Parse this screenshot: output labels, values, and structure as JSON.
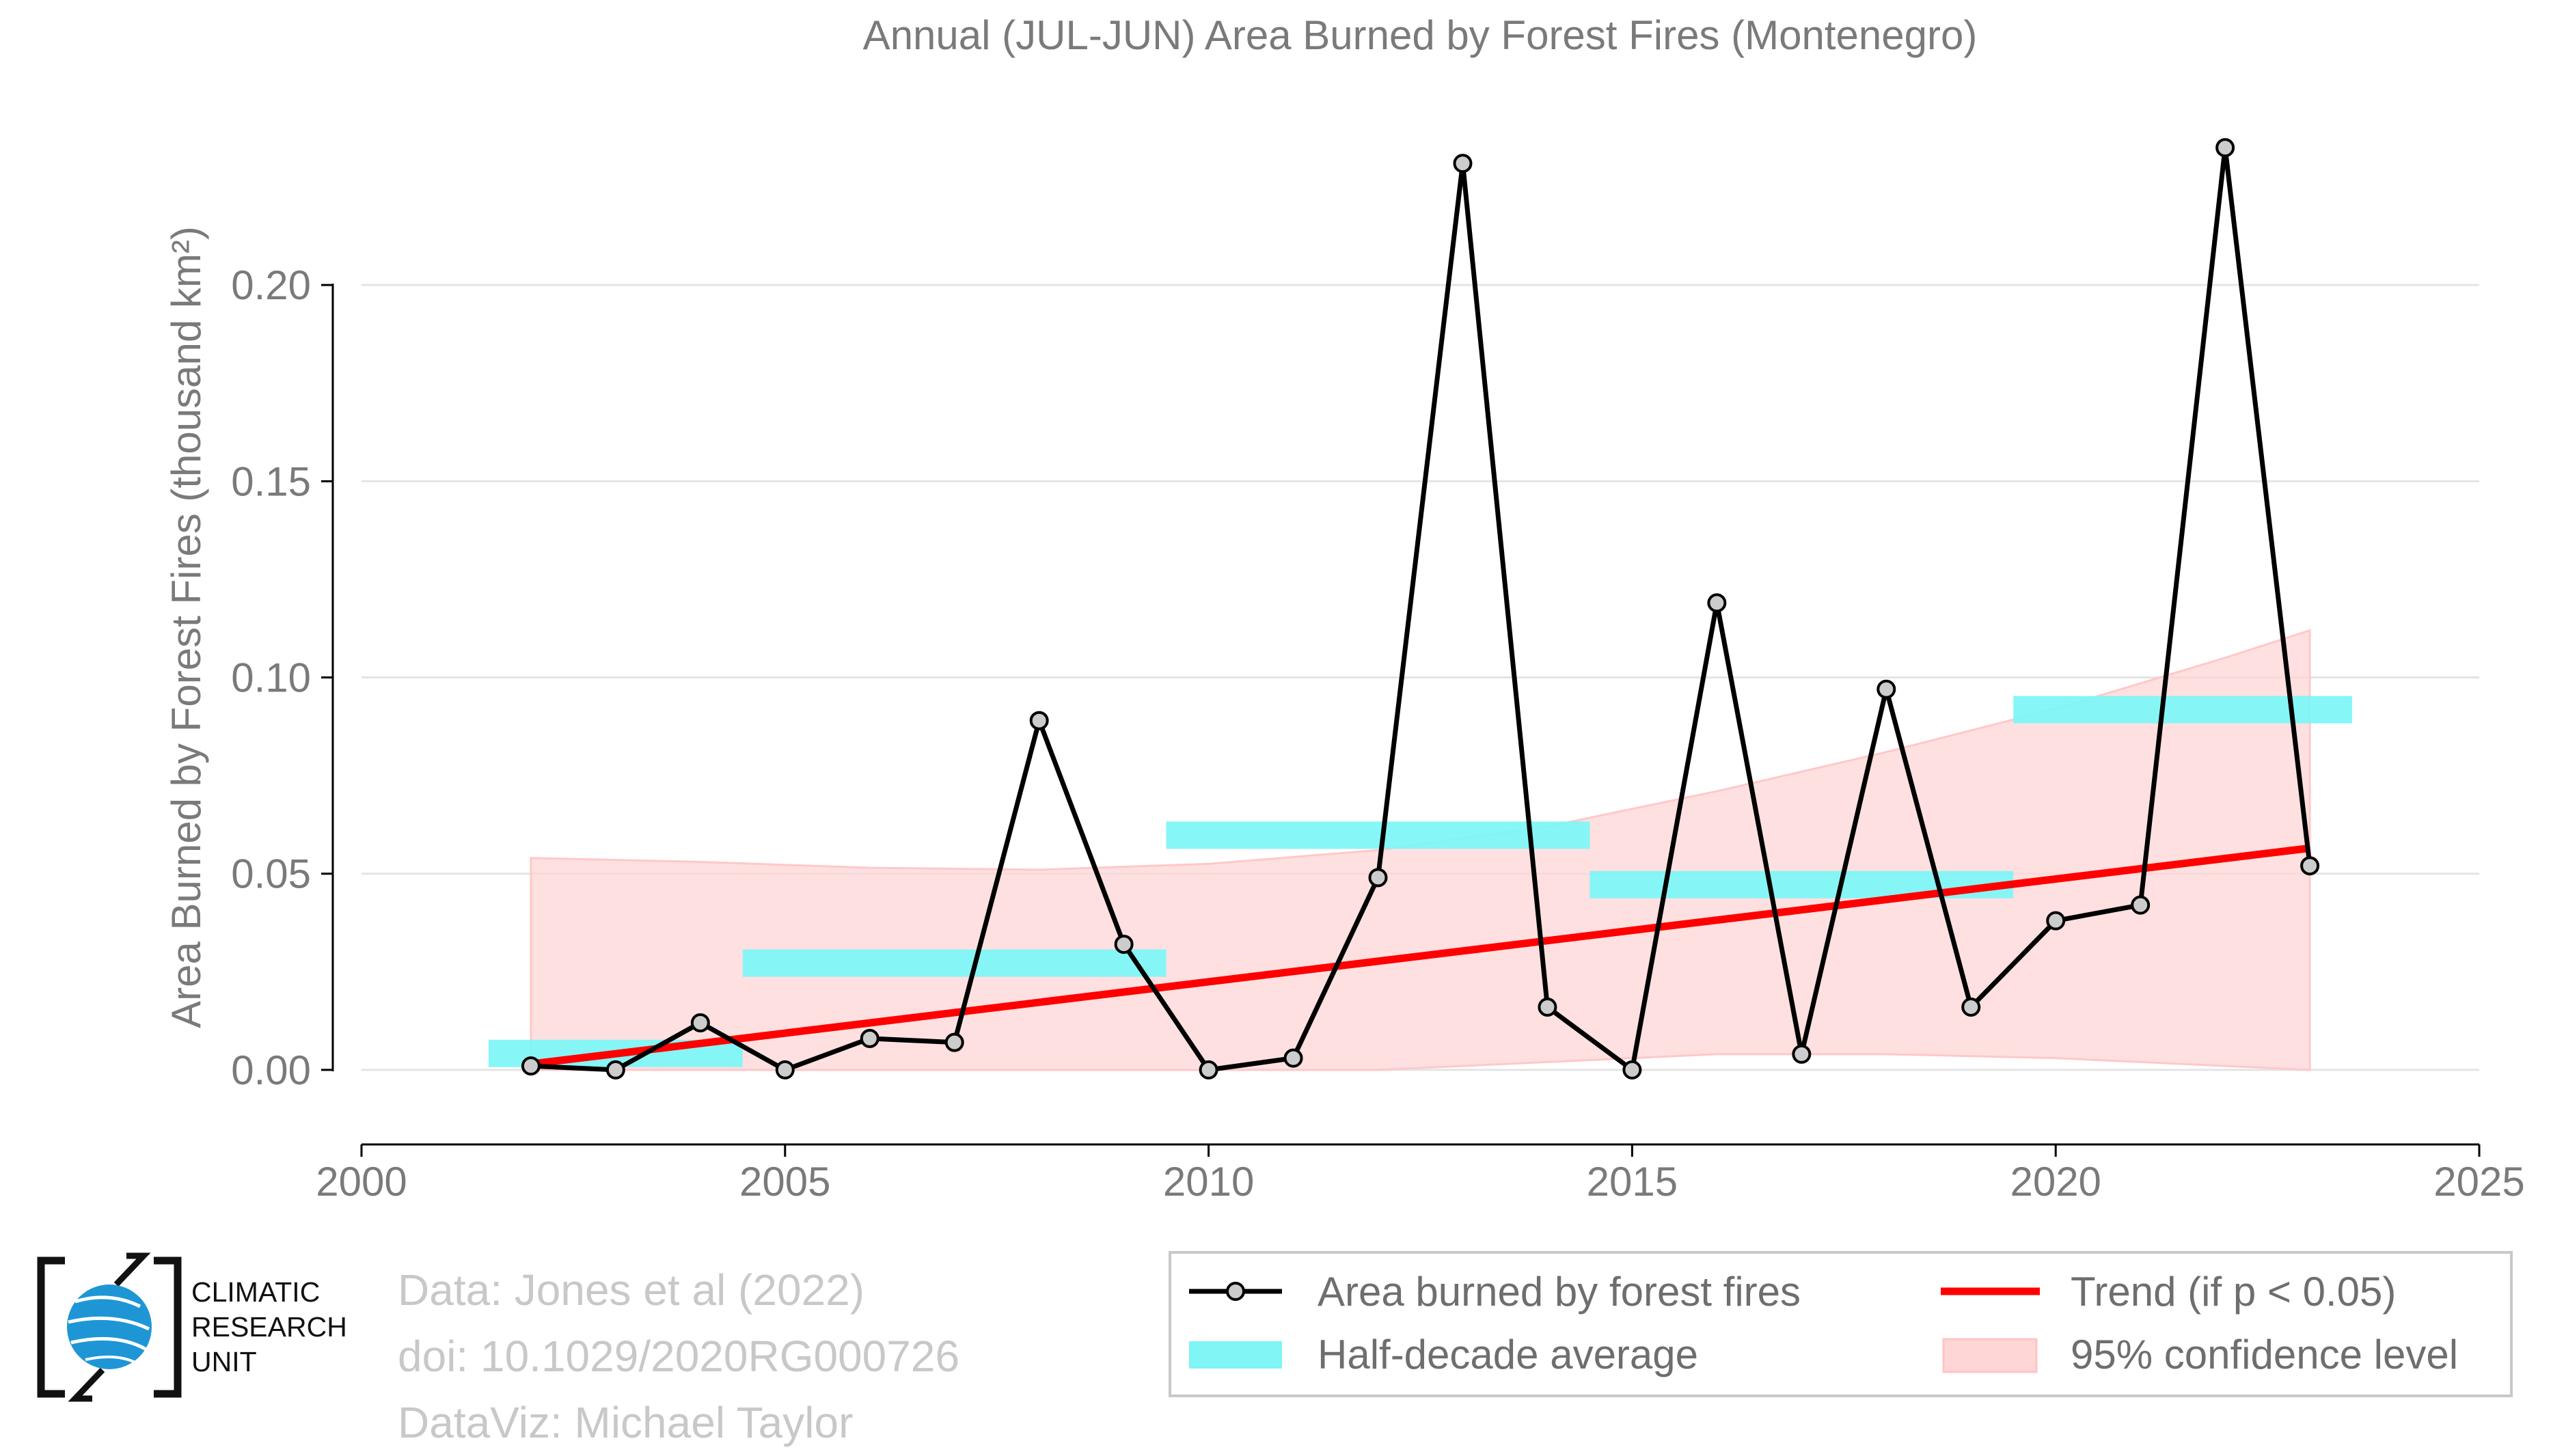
{
  "chart_data": {
    "type": "line",
    "title": "Annual (JUL-JUN) Area Burned by Forest Fires (Montenegro)",
    "ylabel": "Area Burned by Forest Fires (thousand km²)",
    "xlabel": "",
    "xlim": [
      2000,
      2025
    ],
    "ylim": [
      -0.019,
      0.25
    ],
    "x_ticks": [
      "2000",
      "2005",
      "2010",
      "2015",
      "2020",
      "2025"
    ],
    "y_ticks": [
      "0.00",
      "0.05",
      "0.10",
      "0.15",
      "0.20"
    ],
    "grid": true,
    "series": [
      {
        "name": "Area burned by forest fires",
        "color": "#000000",
        "x": [
          2002,
          2003,
          2004,
          2005,
          2006,
          2007,
          2008,
          2009,
          2010,
          2011,
          2012,
          2013,
          2014,
          2015,
          2016,
          2017,
          2018,
          2019,
          2020,
          2021,
          2022,
          2023
        ],
        "y": [
          0.001,
          0.0,
          0.012,
          0.0,
          0.008,
          0.007,
          0.089,
          0.032,
          0.0,
          0.003,
          0.049,
          0.231,
          0.016,
          0.0,
          0.119,
          0.004,
          0.097,
          0.016,
          0.038,
          0.042,
          0.235,
          0.052
        ]
      }
    ],
    "half_decade_average": {
      "name": "Half-decade average",
      "color": "#7ff5f5",
      "segments": [
        {
          "x0": 2001.5,
          "x1": 2004.5,
          "y": 0.0042
        },
        {
          "x0": 2004.5,
          "x1": 2009.5,
          "y": 0.0272
        },
        {
          "x0": 2009.5,
          "x1": 2014.5,
          "y": 0.0598
        },
        {
          "x0": 2014.5,
          "x1": 2019.5,
          "y": 0.0472
        },
        {
          "x0": 2019.5,
          "x1": 2023.5,
          "y": 0.0918
        }
      ]
    },
    "trend": {
      "name": "Trend (if p < 0.05)",
      "color": "#ff0000",
      "x": [
        2002,
        2023
      ],
      "y": [
        0.0015,
        0.0565
      ]
    },
    "confidence_band": {
      "name": "95% confidence level",
      "color": "#ffd6d6",
      "x": [
        2002,
        2004,
        2006,
        2008,
        2010,
        2012,
        2014,
        2016,
        2018,
        2020,
        2022,
        2023
      ],
      "upper": [
        0.054,
        0.053,
        0.0515,
        0.051,
        0.0525,
        0.056,
        0.062,
        0.071,
        0.081,
        0.092,
        0.105,
        0.112
      ],
      "lower": [
        0.0,
        0.0,
        0.0,
        0.0,
        0.0,
        0.0,
        0.002,
        0.004,
        0.004,
        0.003,
        0.001,
        0.0
      ]
    },
    "legend_position": "bottom-right"
  },
  "legend": {
    "items": [
      "Area burned by forest fires",
      "Trend (if p < 0.05)",
      "Half-decade average",
      "95% confidence level"
    ]
  },
  "credits": {
    "data": "Data: Jones et al (2022)",
    "doi": "doi: 10.1029/2020RG000726",
    "dataviz": "DataViz: Michael Taylor"
  },
  "logo": {
    "line1": "CLIMATIC",
    "line2": "RESEARCH",
    "line3": "UNIT"
  }
}
